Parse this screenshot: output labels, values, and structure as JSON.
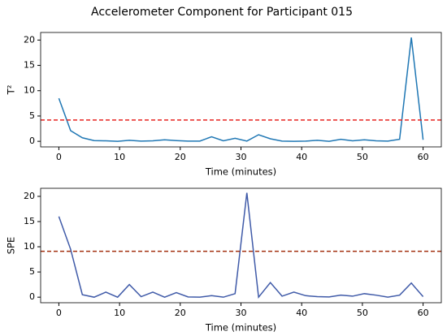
{
  "title": "Accelerometer Component for Participant 015",
  "chart_data": [
    {
      "type": "line",
      "xlabel": "Time (minutes)",
      "ylabel": "T²",
      "x": [
        0,
        1.94,
        3.87,
        5.81,
        7.74,
        9.68,
        11.61,
        13.55,
        15.48,
        17.42,
        19.35,
        21.29,
        23.23,
        25.16,
        27.1,
        29.03,
        30.97,
        32.9,
        34.84,
        36.77,
        38.71,
        40.65,
        42.58,
        44.52,
        46.45,
        48.39,
        50.32,
        52.26,
        54.19,
        56.13,
        58.06,
        60
      ],
      "values": [
        8.5,
        2.1,
        0.7,
        0.15,
        0.1,
        0.0,
        0.2,
        0.05,
        0.1,
        0.3,
        0.15,
        0.05,
        0.05,
        0.9,
        0.1,
        0.6,
        0.05,
        1.3,
        0.5,
        0.05,
        0.0,
        0.05,
        0.2,
        0.0,
        0.4,
        0.1,
        0.3,
        0.1,
        0.05,
        0.4,
        20.5,
        0.3
      ],
      "color": "#1f77b4",
      "threshold": {
        "value": 4.2,
        "color": "#e8221f",
        "style": "dashed"
      },
      "xlim": [
        -3,
        63
      ],
      "xticks": [
        0,
        10,
        20,
        30,
        40,
        50,
        60
      ],
      "ylim": [
        -1.1,
        21.5
      ],
      "yticks": [
        0,
        5,
        10,
        15,
        20
      ]
    },
    {
      "type": "line",
      "xlabel": "Time (minutes)",
      "ylabel": "SPE",
      "x": [
        0,
        1.94,
        3.87,
        5.81,
        7.74,
        9.68,
        11.61,
        13.55,
        15.48,
        17.42,
        19.35,
        21.29,
        23.23,
        25.16,
        27.1,
        29.03,
        30.97,
        32.9,
        34.84,
        36.77,
        38.71,
        40.65,
        42.58,
        44.52,
        46.45,
        48.39,
        50.32,
        52.26,
        54.19,
        56.13,
        58.06,
        60
      ],
      "values": [
        16,
        9.5,
        0.5,
        0.0,
        1.0,
        0.0,
        2.5,
        0.1,
        1.0,
        0.0,
        0.9,
        0.05,
        0.0,
        0.3,
        0.0,
        0.7,
        20.7,
        0.0,
        2.9,
        0.2,
        1.0,
        0.3,
        0.1,
        0.05,
        0.4,
        0.2,
        0.7,
        0.4,
        0.0,
        0.4,
        2.8,
        0.1
      ],
      "color": "#3f5aa8",
      "threshold": {
        "value": 9.1,
        "color": "#a3300f",
        "style": "dashed"
      },
      "xlim": [
        -3,
        63
      ],
      "xticks": [
        0,
        10,
        20,
        30,
        40,
        50,
        60
      ],
      "ylim": [
        -1.1,
        21.6
      ],
      "yticks": [
        0,
        5,
        10,
        15,
        20
      ]
    }
  ]
}
